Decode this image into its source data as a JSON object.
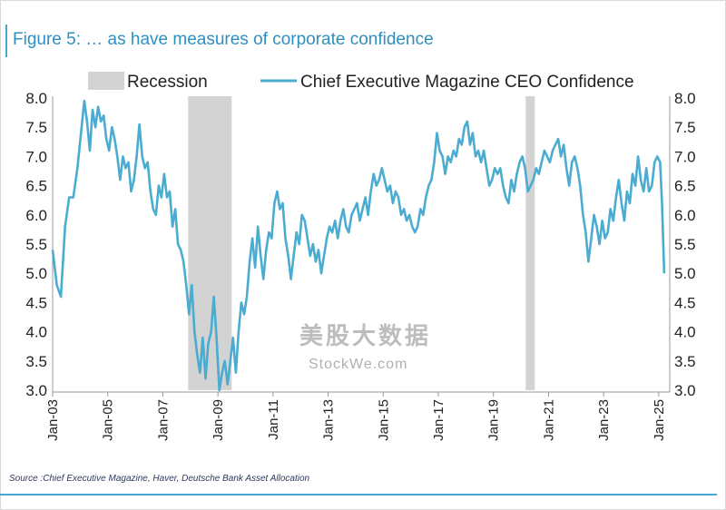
{
  "title": "Figure 5: … as have measures of corporate confidence",
  "source": "Source :Chief Executive Magazine, Haver, Deutsche Bank Asset Allocation",
  "watermark": {
    "logo_text": "美股大数据",
    "site": "StockWe.com"
  },
  "colors": {
    "line": "#4aacd0",
    "recession": "#d3d3d3",
    "accent": "#46a9d1"
  },
  "chart_data": {
    "type": "line",
    "legend": {
      "placement": "top",
      "entries": [
        "Recession",
        "Chief Executive Magazine CEO Confidence"
      ]
    },
    "ylim": [
      3.0,
      8.0
    ],
    "yticks": [
      "8.0",
      "7.5",
      "7.0",
      "6.5",
      "6.0",
      "5.5",
      "5.0",
      "4.5",
      "4.0",
      "3.5",
      "3.0"
    ],
    "xlim": [
      2003.0,
      2025.4
    ],
    "xticks": [
      "Jan-03",
      "Jan-05",
      "Jan-07",
      "Jan-09",
      "Jan-11",
      "Jan-13",
      "Jan-15",
      "Jan-17",
      "Jan-19",
      "Jan-21",
      "Jan-23",
      "Jan-25"
    ],
    "recessions": [
      [
        2007.92,
        2009.5
      ],
      [
        2020.17,
        2020.5
      ]
    ],
    "series": [
      {
        "name": "Chief Executive Magazine CEO Confidence",
        "points": [
          [
            2003.0,
            5.4
          ],
          [
            2003.15,
            4.8
          ],
          [
            2003.3,
            4.6
          ],
          [
            2003.45,
            5.8
          ],
          [
            2003.6,
            6.3
          ],
          [
            2003.75,
            6.3
          ],
          [
            2003.9,
            6.8
          ],
          [
            2004.05,
            7.5
          ],
          [
            2004.15,
            7.95
          ],
          [
            2004.25,
            7.6
          ],
          [
            2004.35,
            7.1
          ],
          [
            2004.45,
            7.8
          ],
          [
            2004.55,
            7.5
          ],
          [
            2004.65,
            7.85
          ],
          [
            2004.75,
            7.6
          ],
          [
            2004.85,
            7.7
          ],
          [
            2004.95,
            7.3
          ],
          [
            2005.05,
            7.1
          ],
          [
            2005.15,
            7.5
          ],
          [
            2005.25,
            7.3
          ],
          [
            2005.35,
            7.0
          ],
          [
            2005.45,
            6.6
          ],
          [
            2005.55,
            7.0
          ],
          [
            2005.65,
            6.8
          ],
          [
            2005.75,
            6.9
          ],
          [
            2005.85,
            6.4
          ],
          [
            2005.95,
            6.6
          ],
          [
            2006.05,
            7.0
          ],
          [
            2006.15,
            7.55
          ],
          [
            2006.25,
            7.0
          ],
          [
            2006.35,
            6.8
          ],
          [
            2006.45,
            6.9
          ],
          [
            2006.55,
            6.4
          ],
          [
            2006.65,
            6.1
          ],
          [
            2006.75,
            6.0
          ],
          [
            2006.85,
            6.5
          ],
          [
            2006.95,
            6.3
          ],
          [
            2007.05,
            6.7
          ],
          [
            2007.15,
            6.3
          ],
          [
            2007.25,
            6.4
          ],
          [
            2007.35,
            5.8
          ],
          [
            2007.45,
            6.1
          ],
          [
            2007.55,
            5.5
          ],
          [
            2007.65,
            5.4
          ],
          [
            2007.75,
            5.2
          ],
          [
            2007.85,
            4.8
          ],
          [
            2007.95,
            4.3
          ],
          [
            2008.05,
            4.8
          ],
          [
            2008.15,
            4.0
          ],
          [
            2008.25,
            3.6
          ],
          [
            2008.35,
            3.3
          ],
          [
            2008.45,
            3.9
          ],
          [
            2008.55,
            3.2
          ],
          [
            2008.65,
            3.8
          ],
          [
            2008.75,
            4.0
          ],
          [
            2008.85,
            4.6
          ],
          [
            2008.95,
            3.9
          ],
          [
            2009.05,
            3.0
          ],
          [
            2009.15,
            3.3
          ],
          [
            2009.25,
            3.5
          ],
          [
            2009.35,
            3.1
          ],
          [
            2009.45,
            3.5
          ],
          [
            2009.55,
            3.9
          ],
          [
            2009.65,
            3.3
          ],
          [
            2009.75,
            4.0
          ],
          [
            2009.85,
            4.5
          ],
          [
            2009.95,
            4.3
          ],
          [
            2010.05,
            4.6
          ],
          [
            2010.15,
            5.2
          ],
          [
            2010.25,
            5.6
          ],
          [
            2010.35,
            5.1
          ],
          [
            2010.45,
            5.8
          ],
          [
            2010.55,
            5.3
          ],
          [
            2010.65,
            4.9
          ],
          [
            2010.75,
            5.4
          ],
          [
            2010.85,
            5.7
          ],
          [
            2010.95,
            5.6
          ],
          [
            2011.05,
            6.2
          ],
          [
            2011.15,
            6.4
          ],
          [
            2011.25,
            6.1
          ],
          [
            2011.35,
            6.2
          ],
          [
            2011.45,
            5.6
          ],
          [
            2011.55,
            5.3
          ],
          [
            2011.65,
            4.9
          ],
          [
            2011.75,
            5.3
          ],
          [
            2011.85,
            5.7
          ],
          [
            2011.95,
            5.5
          ],
          [
            2012.05,
            6.0
          ],
          [
            2012.15,
            5.9
          ],
          [
            2012.25,
            5.6
          ],
          [
            2012.35,
            5.3
          ],
          [
            2012.45,
            5.5
          ],
          [
            2012.55,
            5.2
          ],
          [
            2012.65,
            5.4
          ],
          [
            2012.75,
            5.0
          ],
          [
            2012.85,
            5.3
          ],
          [
            2012.95,
            5.6
          ],
          [
            2013.05,
            5.8
          ],
          [
            2013.15,
            5.7
          ],
          [
            2013.25,
            5.9
          ],
          [
            2013.35,
            5.6
          ],
          [
            2013.45,
            5.9
          ],
          [
            2013.55,
            6.1
          ],
          [
            2013.65,
            5.8
          ],
          [
            2013.75,
            5.7
          ],
          [
            2013.85,
            6.0
          ],
          [
            2013.95,
            6.1
          ],
          [
            2014.05,
            6.2
          ],
          [
            2014.15,
            5.9
          ],
          [
            2014.25,
            6.1
          ],
          [
            2014.35,
            6.3
          ],
          [
            2014.45,
            6.0
          ],
          [
            2014.55,
            6.4
          ],
          [
            2014.65,
            6.7
          ],
          [
            2014.75,
            6.5
          ],
          [
            2014.85,
            6.6
          ],
          [
            2014.95,
            6.8
          ],
          [
            2015.05,
            6.6
          ],
          [
            2015.15,
            6.4
          ],
          [
            2015.25,
            6.5
          ],
          [
            2015.35,
            6.2
          ],
          [
            2015.45,
            6.4
          ],
          [
            2015.55,
            6.3
          ],
          [
            2015.65,
            6.0
          ],
          [
            2015.75,
            6.1
          ],
          [
            2015.85,
            5.9
          ],
          [
            2015.95,
            6.0
          ],
          [
            2016.05,
            5.8
          ],
          [
            2016.15,
            5.7
          ],
          [
            2016.25,
            5.8
          ],
          [
            2016.35,
            6.1
          ],
          [
            2016.45,
            6.0
          ],
          [
            2016.55,
            6.3
          ],
          [
            2016.65,
            6.5
          ],
          [
            2016.75,
            6.6
          ],
          [
            2016.85,
            6.9
          ],
          [
            2016.95,
            7.4
          ],
          [
            2017.05,
            7.1
          ],
          [
            2017.15,
            7.0
          ],
          [
            2017.25,
            6.7
          ],
          [
            2017.35,
            7.0
          ],
          [
            2017.45,
            6.9
          ],
          [
            2017.55,
            7.1
          ],
          [
            2017.65,
            7.0
          ],
          [
            2017.75,
            7.3
          ],
          [
            2017.85,
            7.2
          ],
          [
            2017.95,
            7.5
          ],
          [
            2018.05,
            7.6
          ],
          [
            2018.15,
            7.2
          ],
          [
            2018.25,
            7.4
          ],
          [
            2018.35,
            7.0
          ],
          [
            2018.45,
            7.1
          ],
          [
            2018.55,
            6.9
          ],
          [
            2018.65,
            7.1
          ],
          [
            2018.75,
            6.8
          ],
          [
            2018.85,
            6.5
          ],
          [
            2018.95,
            6.6
          ],
          [
            2019.05,
            6.8
          ],
          [
            2019.15,
            6.7
          ],
          [
            2019.25,
            6.8
          ],
          [
            2019.35,
            6.5
          ],
          [
            2019.45,
            6.3
          ],
          [
            2019.55,
            6.2
          ],
          [
            2019.65,
            6.6
          ],
          [
            2019.75,
            6.4
          ],
          [
            2019.85,
            6.7
          ],
          [
            2019.95,
            6.9
          ],
          [
            2020.05,
            7.0
          ],
          [
            2020.15,
            6.8
          ],
          [
            2020.25,
            6.4
          ],
          [
            2020.35,
            6.5
          ],
          [
            2020.45,
            6.6
          ],
          [
            2020.55,
            6.8
          ],
          [
            2020.65,
            6.7
          ],
          [
            2020.75,
            6.9
          ],
          [
            2020.85,
            7.1
          ],
          [
            2020.95,
            7.0
          ],
          [
            2021.05,
            6.9
          ],
          [
            2021.15,
            7.1
          ],
          [
            2021.25,
            7.2
          ],
          [
            2021.35,
            7.3
          ],
          [
            2021.45,
            7.0
          ],
          [
            2021.55,
            7.2
          ],
          [
            2021.65,
            6.8
          ],
          [
            2021.75,
            6.5
          ],
          [
            2021.85,
            6.9
          ],
          [
            2021.95,
            7.0
          ],
          [
            2022.05,
            6.8
          ],
          [
            2022.15,
            6.5
          ],
          [
            2022.25,
            6.0
          ],
          [
            2022.35,
            5.7
          ],
          [
            2022.45,
            5.2
          ],
          [
            2022.55,
            5.6
          ],
          [
            2022.65,
            6.0
          ],
          [
            2022.75,
            5.8
          ],
          [
            2022.85,
            5.5
          ],
          [
            2022.95,
            5.9
          ],
          [
            2023.05,
            5.6
          ],
          [
            2023.15,
            5.7
          ],
          [
            2023.25,
            6.1
          ],
          [
            2023.35,
            5.9
          ],
          [
            2023.45,
            6.3
          ],
          [
            2023.55,
            6.6
          ],
          [
            2023.65,
            6.2
          ],
          [
            2023.75,
            5.9
          ],
          [
            2023.85,
            6.4
          ],
          [
            2023.95,
            6.2
          ],
          [
            2024.05,
            6.7
          ],
          [
            2024.15,
            6.5
          ],
          [
            2024.25,
            7.0
          ],
          [
            2024.35,
            6.6
          ],
          [
            2024.45,
            6.4
          ],
          [
            2024.55,
            6.8
          ],
          [
            2024.65,
            6.4
          ],
          [
            2024.75,
            6.5
          ],
          [
            2024.85,
            6.9
          ],
          [
            2024.95,
            7.0
          ],
          [
            2025.05,
            6.9
          ],
          [
            2025.12,
            6.2
          ],
          [
            2025.2,
            5.0
          ]
        ]
      }
    ]
  }
}
